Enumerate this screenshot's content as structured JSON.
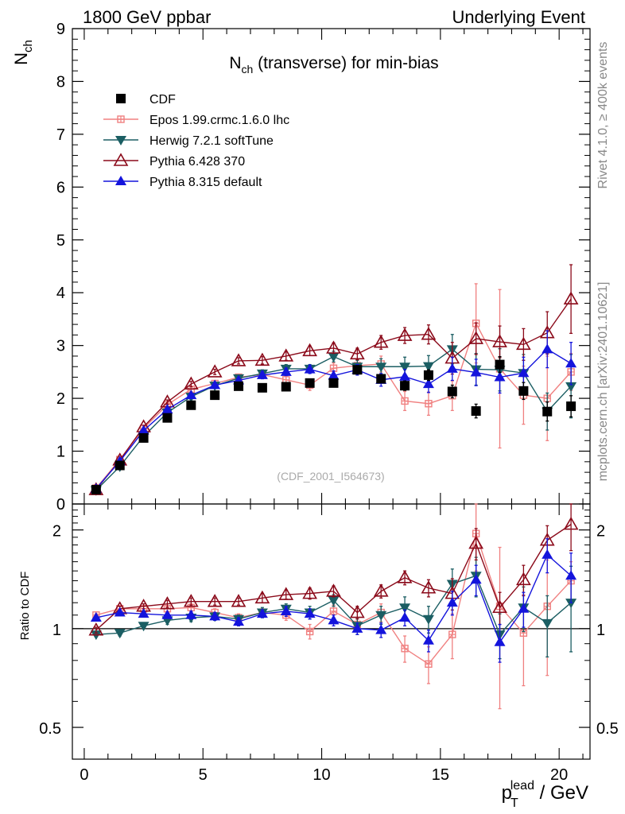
{
  "header": {
    "left": "1800 GeV ppbar",
    "right": "Underlying Event"
  },
  "side_labels": {
    "rivet": "Rivet 4.1.0, ≥ 400k events",
    "mcplots": "mcplots.cern.ch [arXiv:2401.10621]"
  },
  "chart_data": [
    {
      "type": "scatter",
      "panel": "main",
      "title": "N_ch (transverse) for min-bias",
      "title_main": "N",
      "title_sub": "ch",
      "title_rest": " (transverse) for min-bias",
      "ylabel_main": "N",
      "ylabel_sub": "ch",
      "xlabel": "p_T^lead / GeV",
      "xlim": [
        -0.5,
        21.3
      ],
      "ylim": [
        0,
        9
      ],
      "x_ticks": [
        "0",
        "5",
        "10",
        "15",
        "20"
      ],
      "y_ticks": [
        "0",
        "1",
        "2",
        "3",
        "4",
        "5",
        "6",
        "7",
        "8",
        "9"
      ],
      "watermark": "(CDF_2001_I564673)",
      "x": [
        0.5,
        1.5,
        2.5,
        3.5,
        4.5,
        5.5,
        6.5,
        7.5,
        8.5,
        9.5,
        10.5,
        11.5,
        12.5,
        13.5,
        14.5,
        15.5,
        16.5,
        17.5,
        18.5,
        19.5,
        20.5
      ],
      "series": [
        {
          "name": "CDF",
          "color": "#000000",
          "marker": "square",
          "values": [
            0.27,
            0.73,
            1.25,
            1.63,
            1.87,
            2.06,
            2.23,
            2.2,
            2.22,
            2.29,
            2.29,
            2.54,
            2.37,
            2.24,
            2.44,
            2.13,
            1.76,
            2.64,
            2.14,
            1.75,
            1.85
          ],
          "errors": [
            0.01,
            0.02,
            0.02,
            0.03,
            0.03,
            0.04,
            0.04,
            0.05,
            0.06,
            0.06,
            0.07,
            0.08,
            0.08,
            0.09,
            0.1,
            0.12,
            0.13,
            0.15,
            0.16,
            0.18,
            0.2
          ]
        },
        {
          "name": "Epos 1.99.crmc.1.6.0 lhc",
          "color": "#f08080",
          "marker": "cross",
          "values": [
            0.3,
            0.84,
            1.43,
            1.88,
            2.17,
            2.28,
            2.4,
            2.45,
            2.35,
            2.25,
            2.57,
            2.62,
            2.65,
            1.95,
            1.9,
            2.05,
            3.42,
            2.56,
            2.06,
            2.0,
            2.5
          ],
          "errors": [
            0.01,
            0.02,
            0.03,
            0.04,
            0.04,
            0.05,
            0.06,
            0.07,
            0.08,
            0.1,
            0.1,
            0.12,
            0.15,
            0.18,
            0.22,
            0.28,
            0.75,
            1.5,
            0.55,
            0.8,
            0.35
          ]
        },
        {
          "name": "Herwig 7.2.1 softTune",
          "color": "#1b5e63",
          "marker": "triangle-down",
          "values": [
            0.26,
            0.71,
            1.28,
            1.73,
            2.03,
            2.24,
            2.38,
            2.47,
            2.56,
            2.56,
            2.79,
            2.6,
            2.6,
            2.6,
            2.61,
            2.93,
            2.55,
            2.54,
            2.48,
            1.75,
            2.23
          ],
          "errors": [
            0.01,
            0.02,
            0.03,
            0.04,
            0.04,
            0.05,
            0.06,
            0.07,
            0.08,
            0.08,
            0.1,
            0.12,
            0.15,
            0.18,
            0.2,
            0.28,
            0.3,
            0.4,
            0.35,
            0.35,
            0.6
          ]
        },
        {
          "name": "Pythia 6.428 370",
          "color": "#8b0a1a",
          "marker": "triangle-up-open",
          "values": [
            0.27,
            0.83,
            1.46,
            1.93,
            2.27,
            2.5,
            2.71,
            2.72,
            2.8,
            2.9,
            2.95,
            2.84,
            3.06,
            3.19,
            3.21,
            2.76,
            3.13,
            3.07,
            3.02,
            3.24,
            3.88
          ],
          "errors": [
            0.01,
            0.02,
            0.03,
            0.04,
            0.05,
            0.05,
            0.06,
            0.07,
            0.08,
            0.09,
            0.1,
            0.11,
            0.13,
            0.15,
            0.18,
            0.3,
            0.3,
            0.3,
            0.3,
            0.4,
            0.65
          ]
        },
        {
          "name": "Pythia 8.315 default",
          "color": "#1414dc",
          "marker": "triangle-up",
          "values": [
            0.29,
            0.81,
            1.39,
            1.79,
            2.06,
            2.25,
            2.34,
            2.44,
            2.5,
            2.55,
            2.43,
            2.54,
            2.35,
            2.41,
            2.27,
            2.56,
            2.49,
            2.4,
            2.48,
            2.93,
            2.66
          ],
          "errors": [
            0.01,
            0.02,
            0.03,
            0.04,
            0.04,
            0.05,
            0.06,
            0.07,
            0.07,
            0.08,
            0.09,
            0.1,
            0.12,
            0.14,
            0.16,
            0.22,
            0.25,
            0.3,
            0.3,
            0.35,
            0.4
          ]
        }
      ]
    },
    {
      "type": "scatter",
      "panel": "ratio",
      "ylabel": "Ratio to CDF",
      "yscale": "log",
      "ylim": [
        0.4,
        2.4
      ],
      "y_ticks": [
        "0.5",
        "1",
        "2"
      ],
      "reference_line": 1,
      "x": [
        0.5,
        1.5,
        2.5,
        3.5,
        4.5,
        5.5,
        6.5,
        7.5,
        8.5,
        9.5,
        10.5,
        11.5,
        12.5,
        13.5,
        14.5,
        15.5,
        16.5,
        17.5,
        18.5,
        19.5,
        20.5
      ],
      "series": [
        {
          "name": "Epos 1.99.crmc.1.6.0 lhc",
          "values": [
            1.1,
            1.15,
            1.15,
            1.15,
            1.16,
            1.12,
            1.08,
            1.12,
            1.1,
            0.98,
            1.13,
            1.03,
            1.12,
            0.87,
            0.78,
            0.96,
            1.95,
            1.17,
            0.97,
            1.17,
            1.4
          ],
          "errors": [
            0.01,
            0.02,
            0.02,
            0.02,
            0.03,
            0.03,
            0.03,
            0.03,
            0.04,
            0.05,
            0.05,
            0.05,
            0.07,
            0.08,
            0.1,
            0.15,
            0.45,
            0.6,
            0.3,
            0.45,
            0.2
          ]
        },
        {
          "name": "Herwig 7.2.1 softTune",
          "values": [
            0.96,
            0.97,
            1.02,
            1.06,
            1.08,
            1.09,
            1.07,
            1.12,
            1.15,
            1.12,
            1.22,
            1.02,
            1.1,
            1.16,
            1.07,
            1.37,
            1.45,
            0.96,
            1.16,
            1.04,
            1.2
          ],
          "errors": [
            0.01,
            0.02,
            0.02,
            0.03,
            0.03,
            0.03,
            0.03,
            0.04,
            0.04,
            0.05,
            0.05,
            0.06,
            0.07,
            0.09,
            0.1,
            0.15,
            0.2,
            0.15,
            0.18,
            0.22,
            0.35
          ]
        },
        {
          "name": "Pythia 6.428 370",
          "values": [
            0.99,
            1.15,
            1.17,
            1.19,
            1.21,
            1.21,
            1.21,
            1.24,
            1.27,
            1.28,
            1.3,
            1.12,
            1.3,
            1.43,
            1.33,
            1.28,
            1.82,
            1.16,
            1.41,
            1.86,
            2.08
          ],
          "errors": [
            0.02,
            0.02,
            0.02,
            0.03,
            0.03,
            0.03,
            0.03,
            0.04,
            0.04,
            0.05,
            0.05,
            0.05,
            0.06,
            0.07,
            0.08,
            0.14,
            0.2,
            0.13,
            0.15,
            0.2,
            0.35
          ]
        },
        {
          "name": "Pythia 8.315 default",
          "values": [
            1.08,
            1.12,
            1.11,
            1.1,
            1.1,
            1.09,
            1.05,
            1.11,
            1.13,
            1.11,
            1.06,
            1.0,
            0.99,
            1.08,
            0.92,
            1.2,
            1.41,
            0.91,
            1.15,
            1.68,
            1.45
          ],
          "errors": [
            0.01,
            0.02,
            0.02,
            0.02,
            0.03,
            0.03,
            0.03,
            0.03,
            0.04,
            0.04,
            0.04,
            0.04,
            0.05,
            0.06,
            0.07,
            0.1,
            0.15,
            0.12,
            0.14,
            0.2,
            0.25
          ]
        }
      ]
    }
  ]
}
